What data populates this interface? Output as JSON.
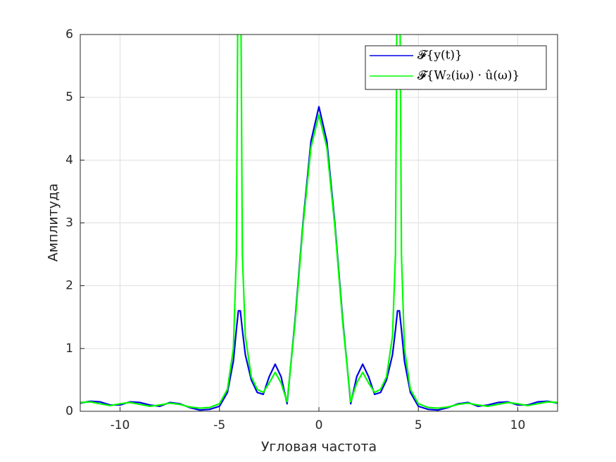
{
  "chart_data": {
    "type": "line",
    "xlabel": "Угловая частота",
    "ylabel": "Амплитуда",
    "xlim": [
      -12,
      12
    ],
    "ylim": [
      0,
      6
    ],
    "xticks": [
      -10,
      -5,
      0,
      5,
      10
    ],
    "yticks": [
      0,
      1,
      2,
      3,
      4,
      5,
      6
    ],
    "grid": true,
    "legend": "upper right",
    "x": [
      -12,
      -11.5,
      -11,
      -10.5,
      -10,
      -9.5,
      -9,
      -8.5,
      -8,
      -7.5,
      -7,
      -6.5,
      -6,
      -5.5,
      -5,
      -4.6,
      -4.3,
      -4.15,
      -4.05,
      -3.95,
      -3.85,
      -3.7,
      -3.4,
      -3.1,
      -2.8,
      -2.5,
      -2.2,
      -1.9,
      -1.6,
      -1.2,
      -0.8,
      -0.4,
      0,
      0.4,
      0.8,
      1.2,
      1.6,
      1.9,
      2.2,
      2.5,
      2.8,
      3.1,
      3.4,
      3.7,
      3.85,
      3.95,
      4.05,
      4.15,
      4.3,
      4.6,
      5,
      5.5,
      6,
      6.5,
      7,
      7.5,
      8,
      8.5,
      9,
      9.5,
      10,
      10.5,
      11,
      11.5,
      12
    ],
    "series": [
      {
        "name": "𝓕{y(t)}",
        "color": "#0000e6",
        "values": [
          0.13,
          0.16,
          0.15,
          0.1,
          0.1,
          0.15,
          0.14,
          0.1,
          0.08,
          0.14,
          0.12,
          0.06,
          0.02,
          0.03,
          0.08,
          0.3,
          0.8,
          1.3,
          1.6,
          1.6,
          1.3,
          0.9,
          0.5,
          0.3,
          0.27,
          0.55,
          0.75,
          0.55,
          0.12,
          1.45,
          3.0,
          4.3,
          4.85,
          4.3,
          3.0,
          1.45,
          0.12,
          0.55,
          0.75,
          0.55,
          0.27,
          0.3,
          0.5,
          0.9,
          1.3,
          1.6,
          1.6,
          1.3,
          0.8,
          0.3,
          0.08,
          0.03,
          0.02,
          0.06,
          0.12,
          0.14,
          0.08,
          0.1,
          0.14,
          0.15,
          0.1,
          0.1,
          0.15,
          0.16,
          0.13
        ]
      },
      {
        "name": "𝓕{W₂(iω) · û(ω)}",
        "color": "#00ff00",
        "values": [
          0.14,
          0.15,
          0.12,
          0.09,
          0.12,
          0.14,
          0.11,
          0.08,
          0.1,
          0.13,
          0.11,
          0.07,
          0.05,
          0.06,
          0.12,
          0.35,
          1.0,
          2.5,
          8,
          8,
          2.5,
          1.2,
          0.55,
          0.35,
          0.3,
          0.45,
          0.62,
          0.45,
          0.15,
          1.4,
          2.95,
          4.2,
          4.72,
          4.2,
          2.95,
          1.4,
          0.15,
          0.45,
          0.62,
          0.45,
          0.3,
          0.35,
          0.55,
          1.2,
          2.5,
          8,
          8,
          2.5,
          1.0,
          0.35,
          0.12,
          0.06,
          0.05,
          0.07,
          0.11,
          0.13,
          0.1,
          0.08,
          0.11,
          0.14,
          0.12,
          0.09,
          0.12,
          0.15,
          0.14
        ]
      }
    ]
  }
}
